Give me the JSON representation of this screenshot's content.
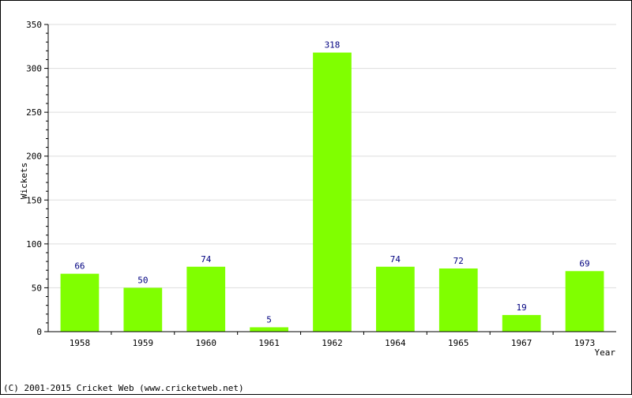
{
  "chart_data": {
    "type": "bar",
    "title": "",
    "xlabel": "Year",
    "ylabel": "Wickets",
    "categories": [
      "1958",
      "1959",
      "1960",
      "1961",
      "1962",
      "1964",
      "1965",
      "1967",
      "1973"
    ],
    "values": [
      66,
      50,
      74,
      5,
      318,
      74,
      72,
      19,
      69
    ],
    "data_labels": [
      "66",
      "50",
      "74",
      "5",
      "318",
      "74",
      "72",
      "19",
      "69"
    ],
    "ylim": [
      0,
      350
    ],
    "yticks": [
      "0",
      "50",
      "100",
      "150",
      "200",
      "250",
      "300",
      "350"
    ],
    "grid": true,
    "legend": "none",
    "bar_color": "#80ff00",
    "label_color": "#000080"
  },
  "footer": {
    "copyright": "(C) 2001-2015 Cricket Web (www.cricketweb.net)"
  }
}
